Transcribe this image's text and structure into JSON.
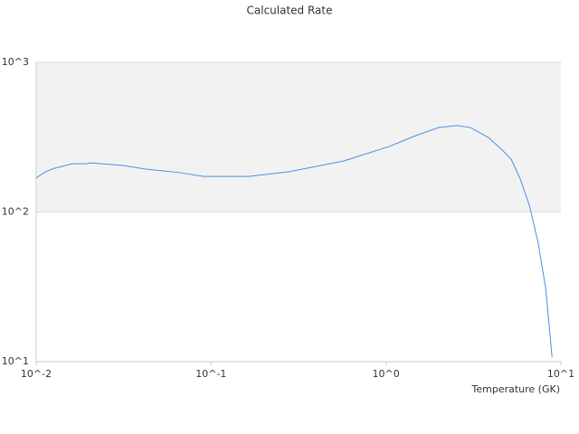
{
  "chart_data": {
    "type": "line",
    "title": "Calculated Rate",
    "x_label": "Temperature (GK)",
    "x_log": true,
    "y_log": true,
    "xlim": [
      0.01,
      10
    ],
    "ylim": [
      10,
      1000
    ],
    "xticks": [
      {
        "value": 0.01,
        "label": "10^-2"
      },
      {
        "value": 0.1,
        "label": "10^-1"
      },
      {
        "value": 1,
        "label": "10^0"
      },
      {
        "value": 10,
        "label": "10^1"
      }
    ],
    "yticks": [
      {
        "value": 10,
        "label": "10^1"
      },
      {
        "value": 100,
        "label": "10^2"
      },
      {
        "value": 1000,
        "label": "10^3"
      }
    ],
    "grid": true,
    "series": [
      {
        "color": "#4a90e2",
        "x": [
          0.01,
          0.0113,
          0.0127,
          0.0161,
          0.0193,
          0.0204,
          0.031,
          0.0417,
          0.0672,
          0.0903,
          0.164,
          0.28,
          0.57,
          1.04,
          1.48,
          2.0,
          2.54,
          3.04,
          3.85,
          4.63,
          5.2,
          5.86,
          6.6,
          7.4,
          8.2,
          8.9
        ],
        "values": [
          169,
          186,
          196,
          210,
          210,
          213,
          205,
          194,
          183,
          173,
          173,
          186,
          219,
          274,
          324,
          367,
          378,
          367,
          315,
          259,
          225,
          166,
          111,
          62.8,
          30.4,
          10.7
        ]
      }
    ]
  }
}
